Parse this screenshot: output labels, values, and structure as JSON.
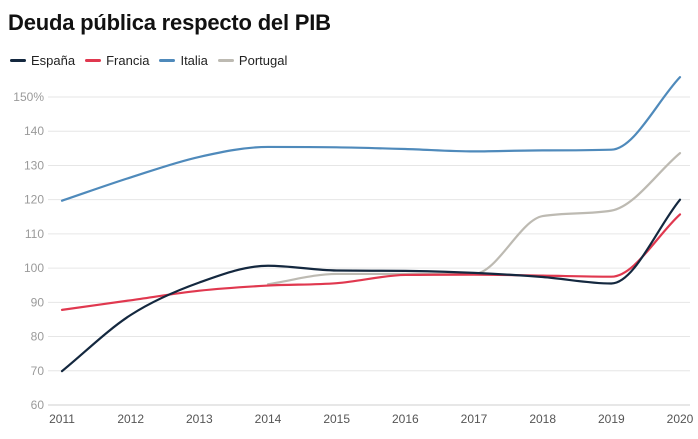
{
  "chart_data": {
    "type": "line",
    "title": "Deuda pública respecto del PIB",
    "x": [
      "2011",
      "2012",
      "2013",
      "2014",
      "2015",
      "2016",
      "2017",
      "2018",
      "2019",
      "2020"
    ],
    "y_ticks": [
      60,
      70,
      80,
      90,
      100,
      110,
      120,
      130,
      140,
      150
    ],
    "y_tick_labels": [
      "60",
      "70",
      "80",
      "90",
      "100",
      "110",
      "120",
      "130",
      "140",
      "150%"
    ],
    "ylim": [
      60,
      150
    ],
    "grid": true,
    "legend_position": "top-left",
    "series": [
      {
        "name": "España",
        "color": "#14283f",
        "values": [
          69.9,
          86.3,
          95.8,
          100.7,
          99.3,
          99.2,
          98.6,
          97.4,
          95.5,
          120.0
        ]
      },
      {
        "name": "Francia",
        "color": "#e0384f",
        "values": [
          87.8,
          90.6,
          93.4,
          94.9,
          95.6,
          98.0,
          98.1,
          97.8,
          97.5,
          115.7
        ]
      },
      {
        "name": "Italia",
        "color": "#4f8abb",
        "values": [
          119.7,
          126.5,
          132.5,
          135.4,
          135.3,
          134.8,
          134.1,
          134.4,
          134.6,
          155.8
        ]
      },
      {
        "name": "Portugal",
        "color": "#bdbab2",
        "values": [
          null,
          null,
          null,
          95.3,
          98.3,
          98.3,
          98.3,
          115.2,
          116.8,
          133.6
        ]
      }
    ]
  }
}
